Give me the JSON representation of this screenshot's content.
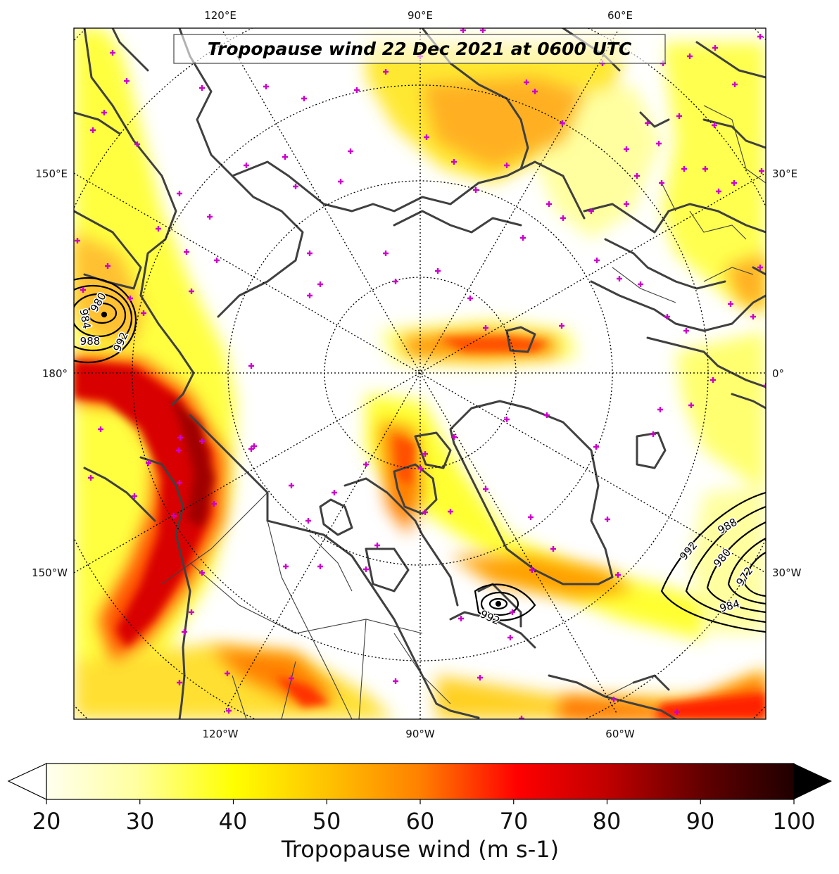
{
  "title": "Tropopause wind 22 Dec 2021 at 0600 UTC",
  "colorbar": {
    "label": "Tropopause wind (m s-1)",
    "min": 20,
    "max": 100,
    "ticks": [
      "20",
      "30",
      "40",
      "50",
      "60",
      "70",
      "80",
      "90",
      "100"
    ],
    "extend": "both",
    "colormap": "hot_r"
  },
  "longitude_labels": {
    "top": [
      "120°E",
      "90°E",
      "60°E"
    ],
    "bottom": [
      "120°W",
      "90°W",
      "60°W"
    ],
    "left": [
      "150°E",
      "180°",
      "150°W"
    ],
    "right": [
      "30°E",
      "0°",
      "30°W"
    ]
  },
  "pressure_contours": {
    "units": "hPa",
    "systems": [
      {
        "location": "west edge (Bering Sea / Kamchatka)",
        "labels": [
          "980",
          "984",
          "988",
          "992"
        ]
      },
      {
        "location": "east edge (North Atlantic)",
        "labels": [
          "992",
          "988",
          "980",
          "972",
          "984"
        ]
      },
      {
        "location": "Hudson Bay / Labrador",
        "labels": [
          "992"
        ]
      }
    ]
  },
  "markers": {
    "color": "#cc00cc",
    "symbol": "+"
  },
  "colors": {
    "coastline": "#404040",
    "jet_low": "#ffff00",
    "jet_mid": "#ff8000",
    "jet_high": "#cc0000"
  }
}
